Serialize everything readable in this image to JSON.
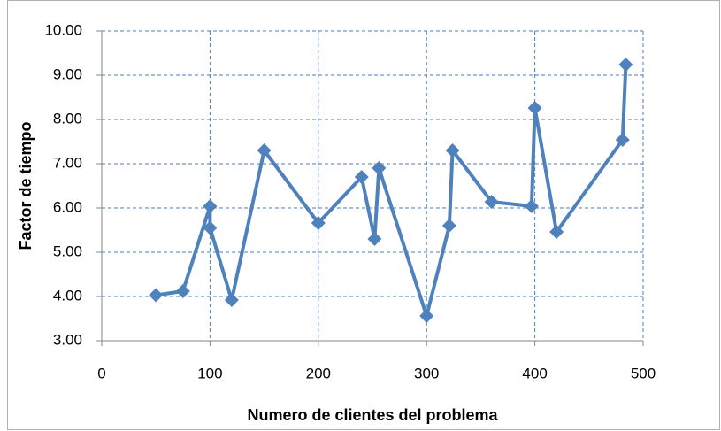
{
  "chart_data": {
    "type": "line",
    "x_label": "Numero de clientes del problema",
    "y_label": "Factor de tiempo",
    "x": [
      50,
      75,
      100,
      100,
      120,
      150,
      200,
      240,
      252,
      256,
      300,
      321,
      324,
      360,
      397,
      400,
      420,
      481,
      484
    ],
    "series": [
      {
        "color": "#4f81bd",
        "values": [
          4.03,
          4.12,
          6.04,
          5.55,
          3.92,
          7.3,
          5.66,
          6.7,
          5.3,
          6.9,
          3.56,
          5.6,
          7.3,
          6.14,
          6.04,
          8.26,
          5.46,
          7.54,
          9.24
        ]
      }
    ],
    "xlim": [
      0,
      500
    ],
    "xticks": [
      0,
      100,
      200,
      300,
      400,
      500
    ],
    "ylim": [
      3,
      10
    ],
    "yticks": [
      {
        "value": 3,
        "label": "3.00"
      },
      {
        "value": 4,
        "label": "4.00"
      },
      {
        "value": 5,
        "label": "5.00"
      },
      {
        "value": 6,
        "label": "6.00"
      },
      {
        "value": 7,
        "label": "7.00"
      },
      {
        "value": 8,
        "label": "8.00"
      },
      {
        "value": 9,
        "label": "9.00"
      },
      {
        "value": 10,
        "label": "10.00"
      }
    ],
    "grid": true
  }
}
